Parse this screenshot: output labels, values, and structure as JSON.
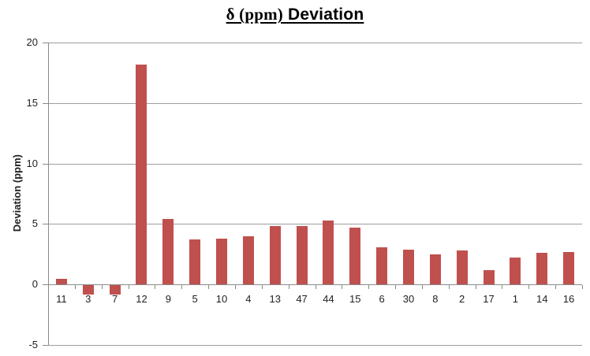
{
  "chart_data": {
    "type": "bar",
    "title": "δ (ppm) Deviation",
    "title_parts": {
      "serif": "δ (ppm)",
      "sans": "Deviation"
    },
    "ylabel": "Deviation (ppm)",
    "xlabel": "",
    "categories": [
      "11",
      "3",
      "7",
      "12",
      "9",
      "5",
      "10",
      "4",
      "13",
      "47",
      "44",
      "15",
      "6",
      "30",
      "8",
      "2",
      "17",
      "1",
      "14",
      "16"
    ],
    "values": [
      0.5,
      -0.8,
      -0.8,
      18.2,
      5.4,
      3.7,
      3.8,
      4.0,
      4.8,
      4.8,
      5.3,
      4.7,
      3.1,
      2.9,
      2.5,
      2.8,
      1.2,
      2.2,
      2.6,
      2.7
    ],
    "ylim": [
      -5,
      20
    ],
    "yticks": [
      20,
      15,
      10,
      5,
      0,
      -5
    ],
    "grid": true,
    "legend_position": "none",
    "colors": {
      "bar": "#C0504D",
      "gridline": "#9E9E9E",
      "axis": "#8A8A8A",
      "tick_label": "#1F1F1F",
      "title": "#000000",
      "background": "#FFFFFF"
    }
  }
}
